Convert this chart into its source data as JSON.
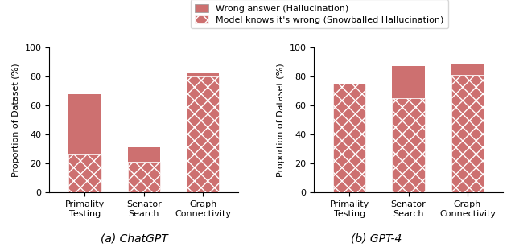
{
  "chatgpt": {
    "categories": [
      "Primality\nTesting",
      "Senator\nSearch",
      "Graph\nConnectivity"
    ],
    "total": [
      68,
      31,
      82
    ],
    "snowballed": [
      26,
      21,
      80
    ]
  },
  "gpt4": {
    "categories": [
      "Primality\nTesting",
      "Senator\nSearch",
      "Graph\nConnectivity"
    ],
    "total": [
      75,
      87,
      89
    ],
    "snowballed": [
      75,
      65,
      81
    ]
  },
  "bar_color": "#cd7070",
  "hatch_color": "white",
  "ylabel": "Proportion of Dataset (%)",
  "ylim": [
    0,
    100
  ],
  "yticks": [
    0,
    20,
    40,
    60,
    80,
    100
  ],
  "legend_label_solid": "Wrong answer (Hallucination)",
  "legend_label_hatch": "Model knows it's wrong (Snowballed Hallucination)",
  "subtitle_left": "(a) ChatGPT",
  "subtitle_right": "(b) GPT-4",
  "subtitle_fontsize": 10,
  "label_fontsize": 8,
  "tick_fontsize": 8,
  "legend_fontsize": 8,
  "bar_width": 0.55
}
